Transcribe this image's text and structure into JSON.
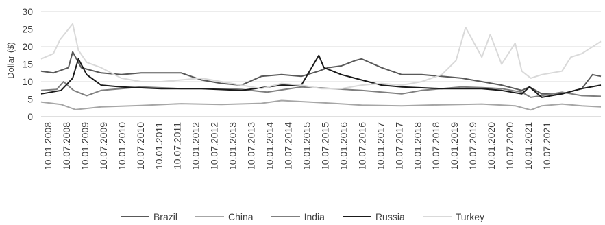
{
  "chart_data": {
    "type": "line",
    "title": "",
    "xlabel": "",
    "ylabel": "Dollar ($)",
    "ylim": [
      0,
      30
    ],
    "yticks": [
      "0",
      "5",
      "10",
      "15",
      "20",
      "25",
      "30"
    ],
    "xlim": [
      "2008-01-10",
      "2021-12-31"
    ],
    "xtick_labels": [
      "10.01.2008",
      "10.07.2008",
      "10.01.2009",
      "10.07.2009",
      "10.01.2010",
      "10.07.2010",
      "10.01.2011",
      "10.07.2011",
      "10.01.2012",
      "10.07.2012",
      "10.01.2013",
      "10.07.2013",
      "10.01.2014",
      "10.07.2014",
      "10.01.2015",
      "10.07.2015",
      "10.01.2016",
      "10.07.2016",
      "10.01.2017",
      "10.07.2017",
      "10.01.2018",
      "10.07.2018",
      "10.01.2019",
      "10.07.2019",
      "10.01.2020",
      "10.07.2020",
      "10.01.2021",
      "10.07.2021"
    ],
    "grid": "horizontal",
    "legend_position": "bottom",
    "series": [
      {
        "name": "Brazil",
        "color": "#595959",
        "x": [
          "2008-01-10",
          "2008-05-01",
          "2008-09-15",
          "2008-10-24",
          "2009-01-10",
          "2009-07-10",
          "2010-01-10",
          "2010-07-10",
          "2011-01-10",
          "2011-07-10",
          "2012-01-10",
          "2012-07-10",
          "2013-01-10",
          "2013-07-10",
          "2014-01-10",
          "2014-07-10",
          "2014-12-15",
          "2015-03-10",
          "2015-07-10",
          "2015-11-10",
          "2016-01-10",
          "2016-07-10",
          "2017-01-10",
          "2017-07-10",
          "2018-01-10",
          "2018-07-10",
          "2019-01-10",
          "2019-07-10",
          "2020-01-10",
          "2020-03-20",
          "2020-07-10",
          "2021-01-10",
          "2021-07-10",
          "2021-10-15",
          "2021-12-31"
        ],
        "values": [
          13,
          12.5,
          14,
          18.5,
          14,
          12.5,
          12,
          12.5,
          12.5,
          12.5,
          10.5,
          9.5,
          9,
          11.5,
          12,
          11.5,
          13,
          14,
          14.5,
          16,
          16.5,
          14,
          12,
          12,
          11.5,
          11,
          10,
          9,
          7.5,
          8.5,
          6.5,
          6.5,
          8,
          12,
          11.5
        ]
      },
      {
        "name": "China",
        "color": "#a6a6a6",
        "x": [
          "2008-01-10",
          "2008-07-10",
          "2008-11-20",
          "2009-07-10",
          "2010-07-10",
          "2011-07-10",
          "2012-07-10",
          "2013-07-10",
          "2014-01-10",
          "2015-01-10",
          "2016-01-10",
          "2017-01-10",
          "2018-01-10",
          "2019-01-10",
          "2019-11-10",
          "2020-04-01",
          "2020-07-10",
          "2021-01-10",
          "2021-07-10",
          "2021-12-31"
        ],
        "values": [
          4.2,
          3.5,
          2,
          2.8,
          3.2,
          3.7,
          3.5,
          3.8,
          4.6,
          4,
          3.3,
          3.1,
          3.4,
          3.6,
          3.1,
          1.9,
          3.1,
          3.6,
          3.1,
          2.8
        ]
      },
      {
        "name": "India",
        "color": "#7f7f7f",
        "x": [
          "2008-01-10",
          "2008-06-01",
          "2008-08-01",
          "2008-11-01",
          "2009-03-01",
          "2009-07-10",
          "2010-07-10",
          "2011-07-10",
          "2012-07-10",
          "2013-01-10",
          "2013-09-01",
          "2014-07-10",
          "2015-01-10",
          "2016-01-10",
          "2017-01-10",
          "2017-07-10",
          "2018-01-10",
          "2018-07-10",
          "2019-01-10",
          "2019-07-10",
          "2020-01-10",
          "2020-04-01",
          "2020-07-10",
          "2021-01-10",
          "2021-07-10",
          "2021-12-31"
        ],
        "values": [
          7.5,
          7.8,
          10,
          7.5,
          6,
          7.5,
          8.5,
          8,
          8,
          7.8,
          7,
          8.5,
          8.2,
          7.5,
          6.5,
          7.5,
          8,
          8.5,
          8.3,
          8,
          7,
          5.5,
          6,
          7,
          6,
          5.8
        ]
      },
      {
        "name": "Russia",
        "color": "#1a1a1a",
        "x": [
          "2008-01-10",
          "2008-07-10",
          "2008-10-24",
          "2008-12-15",
          "2009-03-01",
          "2009-07-10",
          "2010-01-10",
          "2011-01-10",
          "2012-01-10",
          "2013-01-10",
          "2014-01-10",
          "2014-07-10",
          "2014-12-16",
          "2015-02-01",
          "2015-07-10",
          "2016-01-10",
          "2016-07-10",
          "2017-01-10",
          "2018-01-10",
          "2019-01-10",
          "2019-07-10",
          "2020-01-10",
          "2020-03-20",
          "2020-07-10",
          "2021-01-10",
          "2021-07-10",
          "2021-12-31"
        ],
        "values": [
          6.5,
          7.5,
          11,
          16.5,
          12,
          9,
          8.5,
          8,
          8,
          7.5,
          9,
          9,
          17.5,
          14,
          12,
          10.5,
          9,
          8.5,
          8,
          8,
          7.5,
          6.5,
          8.5,
          5.5,
          6.5,
          8,
          9
        ]
      },
      {
        "name": "Turkey",
        "color": "#d9d9d9",
        "x": [
          "2008-01-10",
          "2008-05-01",
          "2008-07-01",
          "2008-10-24",
          "2008-12-15",
          "2009-03-01",
          "2009-07-10",
          "2010-01-10",
          "2010-07-10",
          "2011-01-10",
          "2011-07-10",
          "2012-01-10",
          "2012-07-10",
          "2013-01-10",
          "2013-07-10",
          "2014-01-10",
          "2014-07-10",
          "2015-01-10",
          "2015-07-10",
          "2016-01-10",
          "2016-07-10",
          "2017-01-10",
          "2017-07-10",
          "2018-01-10",
          "2018-05-20",
          "2018-08-15",
          "2019-01-10",
          "2019-03-28",
          "2019-07-10",
          "2019-11-10",
          "2020-01-10",
          "2020-04-01",
          "2020-07-10",
          "2021-01-10",
          "2021-04-01",
          "2021-07-10",
          "2021-12-31"
        ],
        "values": [
          16.5,
          18,
          22,
          26.5,
          19,
          15.5,
          14,
          11,
          10,
          10,
          10.5,
          11,
          10,
          9,
          8,
          9.5,
          9,
          8,
          8,
          9,
          9.5,
          9,
          10,
          12,
          16,
          25.5,
          17,
          23.5,
          15,
          21,
          13,
          11,
          12,
          13,
          17,
          18,
          21.5
        ]
      }
    ]
  }
}
